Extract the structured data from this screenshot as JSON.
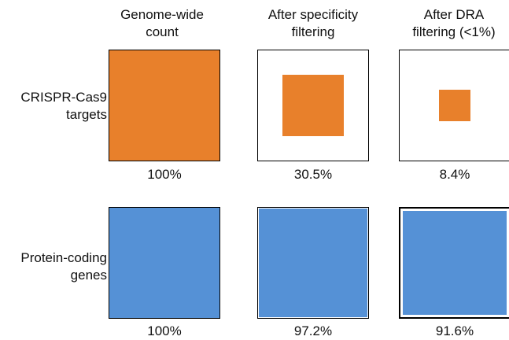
{
  "columns": [
    {
      "line1": "Genome-wide",
      "line2": "count"
    },
    {
      "line1": "After specificity",
      "line2": "filtering"
    },
    {
      "line1": "After DRA",
      "line2": "filtering (<1%)"
    }
  ],
  "rows": [
    {
      "label_line1": "CRISPR-Cas9",
      "label_line2": "targets",
      "color": "#E8802B",
      "percentages": [
        "100%",
        "30.5%",
        "8.4%"
      ],
      "fractions": [
        1.0,
        0.305,
        0.084
      ]
    },
    {
      "label_line1": "Protein-coding",
      "label_line2": "genes",
      "color": "#5591D6",
      "percentages": [
        "100%",
        "97.2%",
        "91.6%"
      ],
      "fractions": [
        1.0,
        0.972,
        0.916
      ]
    }
  ]
}
